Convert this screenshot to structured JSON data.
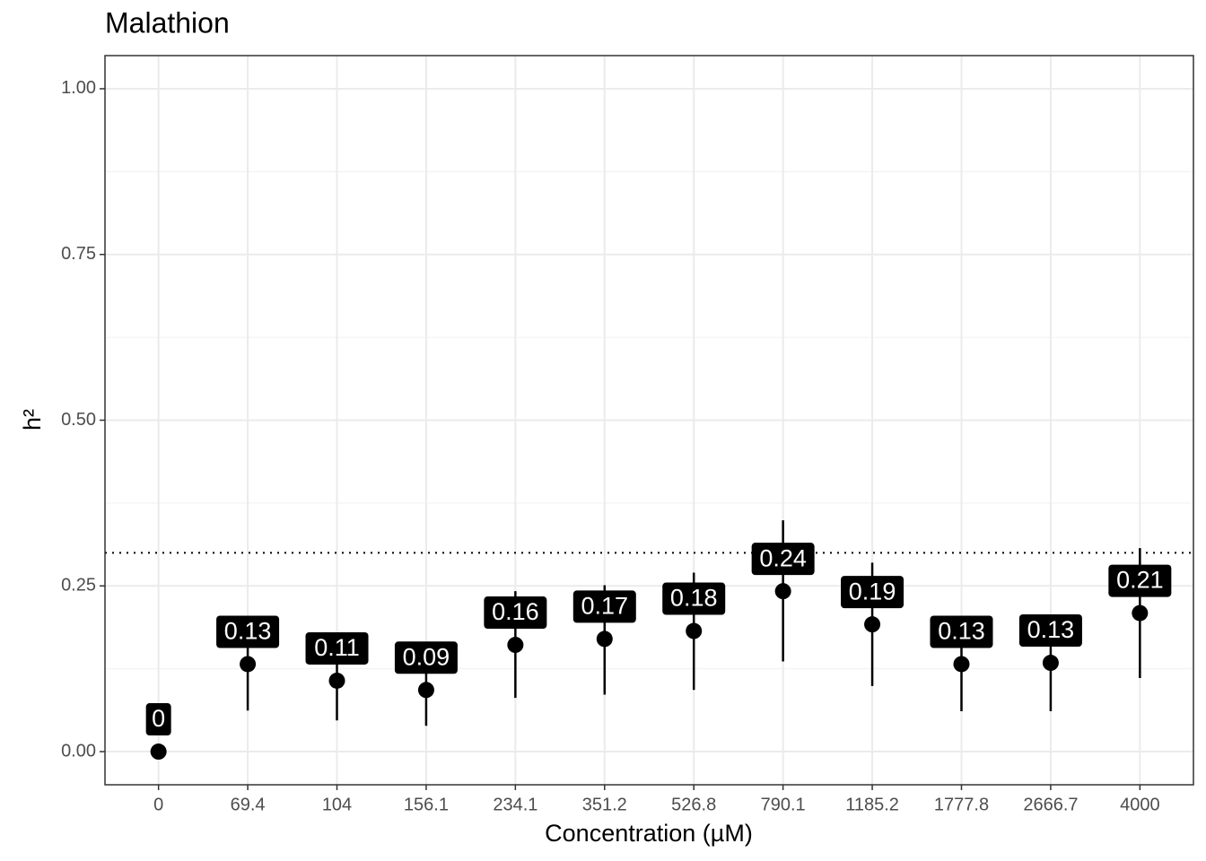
{
  "chart_data": {
    "type": "pointrange",
    "title": "Malathion",
    "x_label": "Concentration (µM)",
    "y_label": "h²",
    "categories": [
      "0",
      "69.4",
      "104",
      "156.1",
      "234.1",
      "351.2",
      "526.8",
      "790.1",
      "1185.2",
      "1777.8",
      "2666.7",
      "4000"
    ],
    "values": [
      0,
      0.132,
      0.107,
      0.093,
      0.161,
      0.17,
      0.182,
      0.242,
      0.192,
      0.132,
      0.134,
      0.209
    ],
    "lower": [
      0,
      0.062,
      0.047,
      0.039,
      0.081,
      0.086,
      0.093,
      0.136,
      0.099,
      0.061,
      0.061,
      0.111
    ],
    "upper": [
      0,
      0.202,
      0.167,
      0.147,
      0.242,
      0.251,
      0.27,
      0.349,
      0.285,
      0.203,
      0.207,
      0.307
    ],
    "value_labels": [
      "0",
      "0.13",
      "0.11",
      "0.09",
      "0.16",
      "0.17",
      "0.18",
      "0.24",
      "0.19",
      "0.13",
      "0.13",
      "0.21"
    ],
    "color": "#000000",
    "hline": 0.3,
    "ylim": [
      -0.05,
      1.05
    ],
    "yticks": [
      {
        "value": 0,
        "label": "0.00"
      },
      {
        "value": 0.25,
        "label": "0.25"
      },
      {
        "value": 0.5,
        "label": "0.50"
      },
      {
        "value": 0.75,
        "label": "0.75"
      },
      {
        "value": 1,
        "label": "1.00"
      }
    ],
    "grid": true
  }
}
